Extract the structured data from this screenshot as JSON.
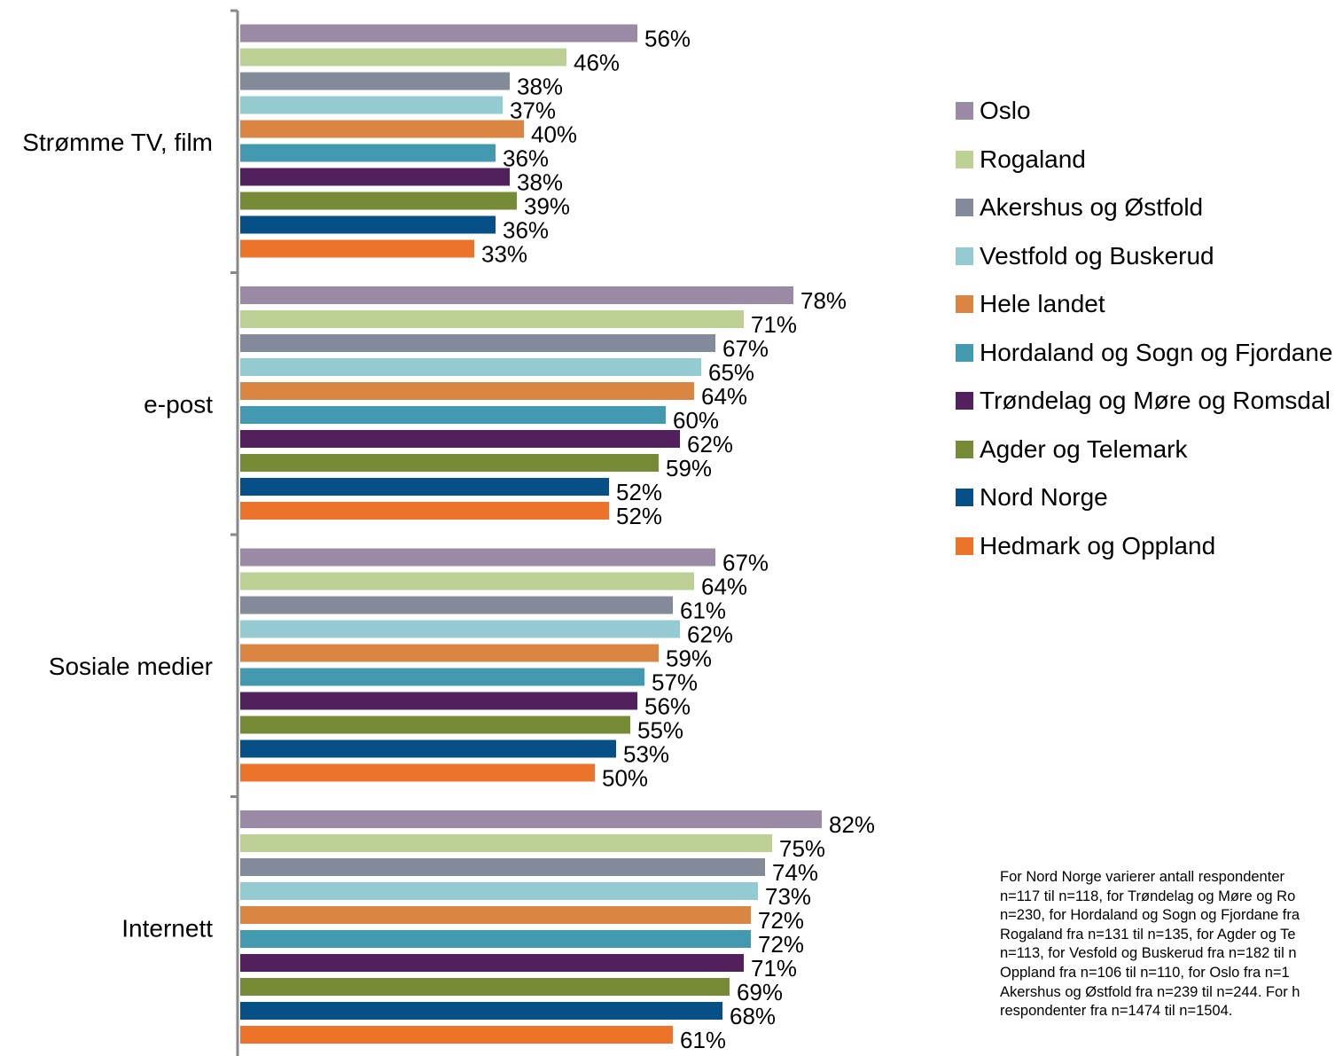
{
  "chart_data": {
    "type": "bar",
    "orientation": "horizontal",
    "categories": [
      "Strømme TV, film",
      "e-post",
      "Sosiale medier",
      "Internett"
    ],
    "series": [
      {
        "name": "Oslo",
        "color": "#9b8aa5",
        "values": [
          56,
          78,
          67,
          82
        ]
      },
      {
        "name": "Rogaland",
        "color": "#bcd094",
        "values": [
          46,
          71,
          64,
          75
        ]
      },
      {
        "name": "Akershus og Østfold",
        "color": "#838b9a",
        "values": [
          38,
          67,
          61,
          74
        ]
      },
      {
        "name": "Vestfold og Buskerud",
        "color": "#94cbd2",
        "values": [
          37,
          65,
          62,
          73
        ]
      },
      {
        "name": "Hele landet",
        "color": "#db8543",
        "values": [
          40,
          64,
          59,
          72
        ]
      },
      {
        "name": "Hordaland og Sogn og Fjordane",
        "color": "#4299b0",
        "values": [
          36,
          60,
          57,
          72
        ]
      },
      {
        "name": "Trøndelag og Møre og Romsdal",
        "color": "#53205e",
        "values": [
          38,
          62,
          56,
          71
        ]
      },
      {
        "name": "Agder og Telemark",
        "color": "#778b36",
        "values": [
          39,
          59,
          55,
          69
        ]
      },
      {
        "name": "Nord Norge",
        "color": "#064f87",
        "values": [
          36,
          52,
          53,
          68
        ]
      },
      {
        "name": "Hedmark og Oppland",
        "color": "#eb732a",
        "values": [
          33,
          52,
          50,
          61
        ]
      }
    ],
    "value_format": "percent",
    "xlim": [
      0,
      100
    ],
    "legend_placement": "right",
    "grid": false
  },
  "note": {
    "lines": [
      "For Nord Norge varierer antall respondenter",
      "n=117 til n=118, for Trøndelag og Møre og Ro",
      "n=230, for Hordaland og Sogn og Fjordane fra",
      "Rogaland fra n=131 til n=135, for Agder og Te",
      "n=113, for Vesfold og Buskerud fra n=182 til n",
      "Oppland fra n=106 til n=110, for Oslo fra n=1",
      "Akershus og Østfold fra n=239 til n=244. For h",
      "respondenter fra n=1474 til n=1504."
    ]
  }
}
